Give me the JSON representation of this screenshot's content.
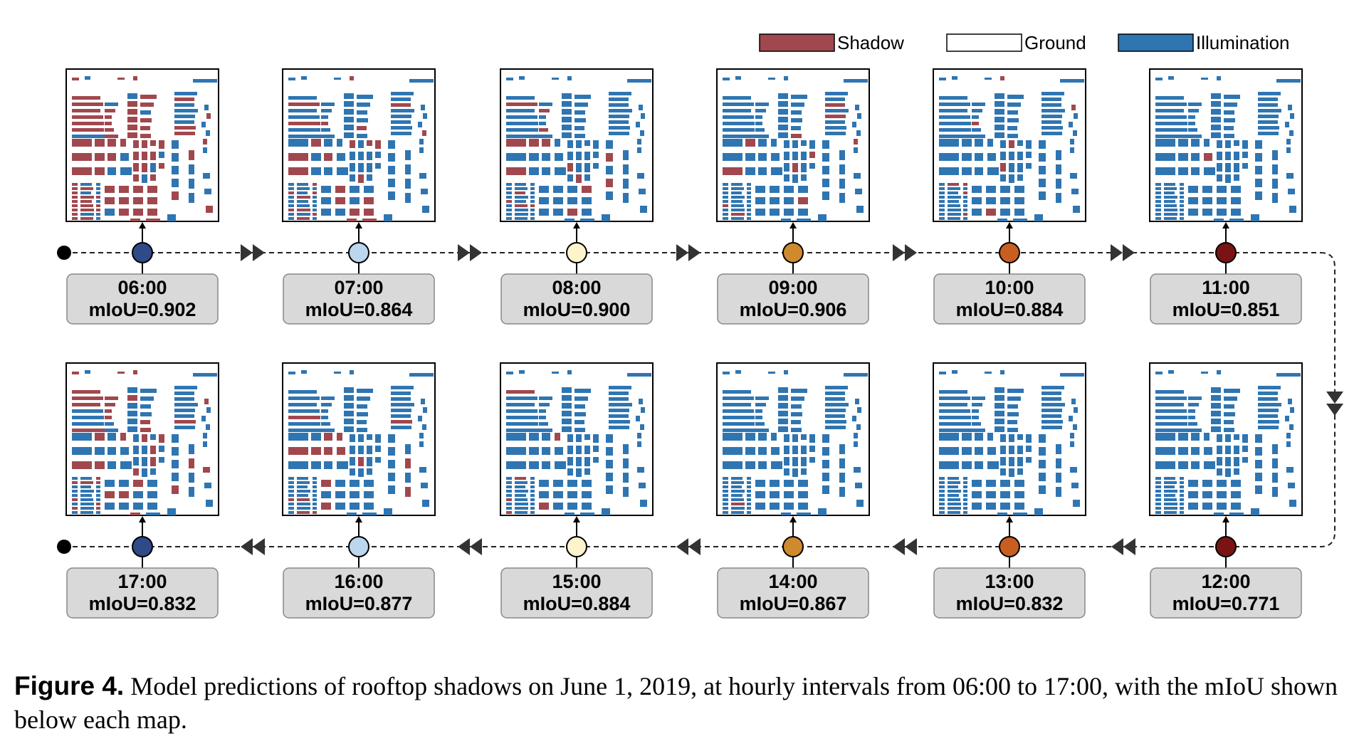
{
  "legend": [
    {
      "label": "Shadow",
      "color": "#a0484e"
    },
    {
      "label": "Ground",
      "color": "#ffffff"
    },
    {
      "label": "Illumination",
      "color": "#2f75b1"
    }
  ],
  "timeline": [
    {
      "time": "06:00",
      "miou": "mIoU=0.902",
      "dot_color": "#2e4a87",
      "shadow_fraction": 0.55
    },
    {
      "time": "07:00",
      "miou": "mIoU=0.864",
      "dot_color": "#bcd6ee",
      "shadow_fraction": 0.22
    },
    {
      "time": "08:00",
      "miou": "mIoU=0.900",
      "dot_color": "#fdf3cd",
      "shadow_fraction": 0.14
    },
    {
      "time": "09:00",
      "miou": "mIoU=0.906",
      "dot_color": "#cf8a2e",
      "shadow_fraction": 0.09
    },
    {
      "time": "10:00",
      "miou": "mIoU=0.884",
      "dot_color": "#c85f21",
      "shadow_fraction": 0.05
    },
    {
      "time": "11:00",
      "miou": "mIoU=0.851",
      "dot_color": "#7a1414",
      "shadow_fraction": 0.01
    },
    {
      "time": "12:00",
      "miou": "mIoU=0.771",
      "dot_color": "#7a1414",
      "shadow_fraction": 0.0
    },
    {
      "time": "13:00",
      "miou": "mIoU=0.832",
      "dot_color": "#c85f21",
      "shadow_fraction": 0.02
    },
    {
      "time": "14:00",
      "miou": "mIoU=0.867",
      "dot_color": "#cf8a2e",
      "shadow_fraction": 0.03
    },
    {
      "time": "15:00",
      "miou": "mIoU=0.884",
      "dot_color": "#fdf3cd",
      "shadow_fraction": 0.08
    },
    {
      "time": "16:00",
      "miou": "mIoU=0.877",
      "dot_color": "#bcd6ee",
      "shadow_fraction": 0.15
    },
    {
      "time": "17:00",
      "miou": "mIoU=0.832",
      "dot_color": "#2e4a87",
      "shadow_fraction": 0.3
    }
  ],
  "caption": {
    "lead": "Figure 4.",
    "text": "Model predictions of rooftop shadows on June 1, 2019, at hourly intervals from 06:00 to 17:00, with the mIoU shown below each map."
  }
}
